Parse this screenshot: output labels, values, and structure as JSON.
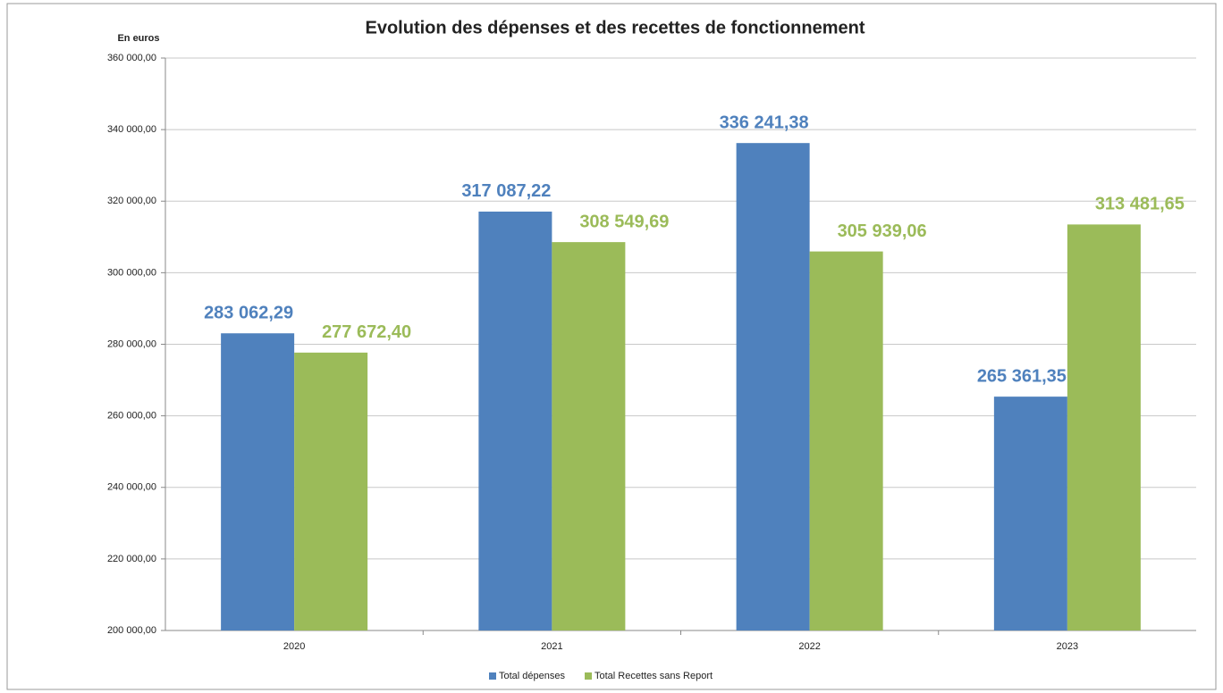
{
  "chart_data": {
    "type": "bar",
    "title": "Evolution des dépenses et des recettes de fonctionnement",
    "ylabel": "En euros",
    "categories": [
      "2020",
      "2021",
      "2022",
      "2023"
    ],
    "series": [
      {
        "name": "Total dépenses",
        "color": "#4f81bd",
        "values": [
          283062.29,
          317087.22,
          336241.38,
          265361.35
        ],
        "value_labels": [
          "283 062,29",
          "317 087,22",
          "336 241,38",
          "265 361,35"
        ]
      },
      {
        "name": "Total Recettes sans Report",
        "color": "#9bbb59",
        "values": [
          277672.4,
          308549.69,
          305939.06,
          313481.65
        ],
        "value_labels": [
          "277 672,40",
          "308 549,69",
          "305 939,06",
          "313 481,65"
        ]
      }
    ],
    "ylim": [
      200000,
      360000
    ],
    "yticks": [
      {
        "value": 200000,
        "label": "200 000,00"
      },
      {
        "value": 220000,
        "label": "220 000,00"
      },
      {
        "value": 240000,
        "label": "240 000,00"
      },
      {
        "value": 260000,
        "label": "260 000,00"
      },
      {
        "value": 280000,
        "label": "280 000,00"
      },
      {
        "value": 300000,
        "label": "300 000,00"
      },
      {
        "value": 320000,
        "label": "320 000,00"
      },
      {
        "value": 340000,
        "label": "340 000,00"
      },
      {
        "value": 360000,
        "label": "360 000,00"
      }
    ],
    "grid": true,
    "legend": "bottom"
  }
}
